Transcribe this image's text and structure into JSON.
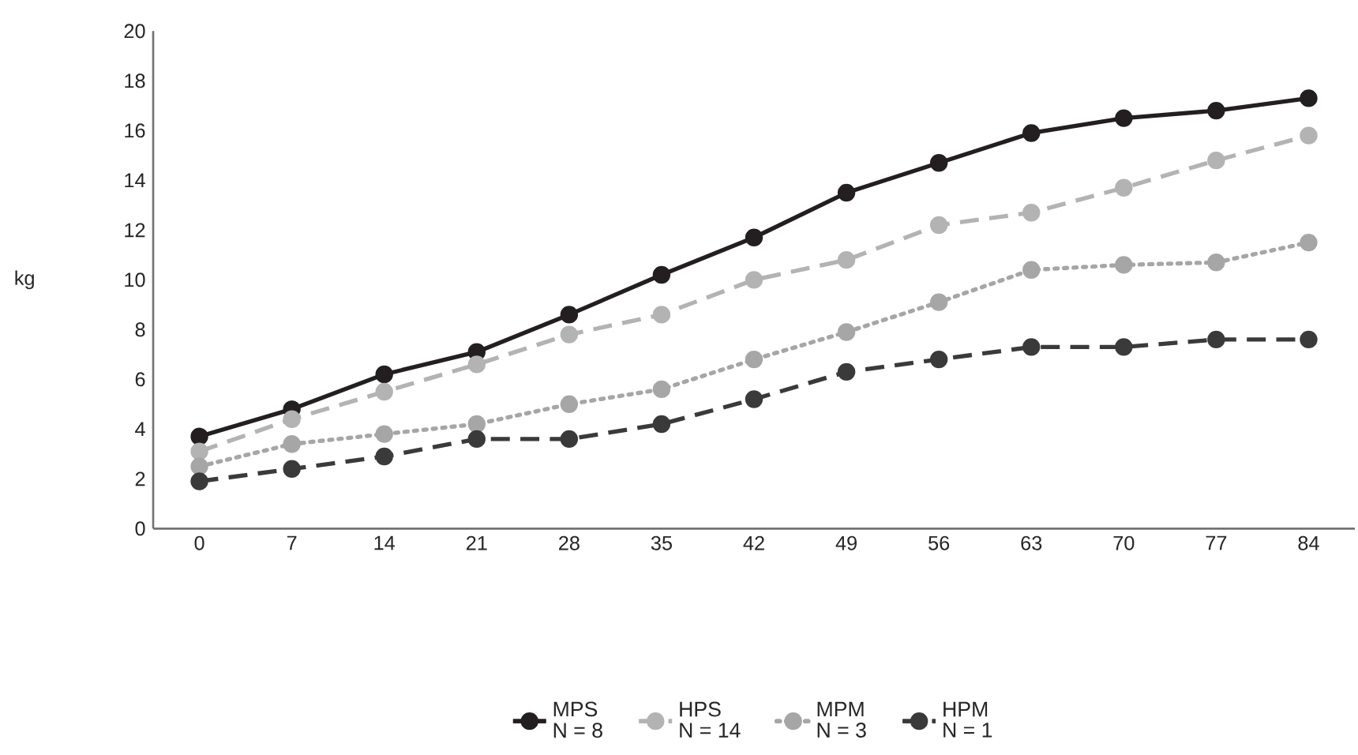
{
  "chart_data": {
    "type": "line",
    "ylabel": "kg",
    "categories": [
      "0",
      "7",
      "14",
      "21",
      "28",
      "35",
      "42",
      "49",
      "56",
      "63",
      "70",
      "77",
      "84"
    ],
    "series": [
      {
        "name": "MPS",
        "color": "#231f20",
        "line_style": "solid",
        "values": [
          3.7,
          4.8,
          6.2,
          7.1,
          8.6,
          10.2,
          11.7,
          13.5,
          14.7,
          15.9,
          16.5,
          16.8,
          17.3
        ]
      },
      {
        "name": "HPS",
        "color": "#b3b3b3",
        "line_style": "dashed",
        "values": [
          3.1,
          4.4,
          5.5,
          6.6,
          7.8,
          8.6,
          10.0,
          10.8,
          12.2,
          12.7,
          13.7,
          14.8,
          15.8
        ]
      },
      {
        "name": "MPM",
        "color": "#a6a6a6",
        "line_style": "dotted",
        "values": [
          2.5,
          3.4,
          3.8,
          4.2,
          5.0,
          5.6,
          6.8,
          7.9,
          9.1,
          10.4,
          10.6,
          10.7,
          11.5
        ]
      },
      {
        "name": "HPM",
        "color": "#3a3a3a",
        "line_style": "dashed",
        "values": [
          1.9,
          2.4,
          2.9,
          3.6,
          3.6,
          4.2,
          5.2,
          6.3,
          6.8,
          7.3,
          7.3,
          7.6,
          7.6
        ]
      }
    ],
    "annotations": [
      "N = 8",
      "N = 14",
      "N = 3",
      "N = 1"
    ],
    "ylim": [
      0,
      20
    ],
    "yticks": [
      0,
      2,
      4,
      6,
      8,
      10,
      12,
      14,
      16,
      18,
      20
    ],
    "marker": "circle",
    "legend": "bottom"
  }
}
